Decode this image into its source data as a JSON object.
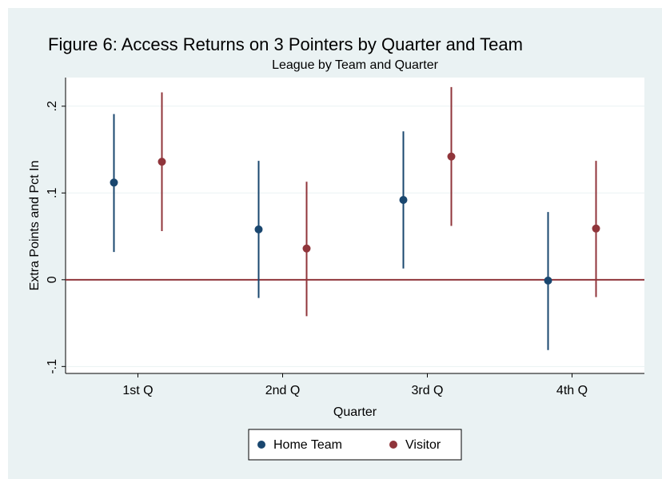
{
  "chart_data": {
    "type": "errorbar",
    "title": "Figure 6: Access Returns on 3 Pointers by Quarter and Team",
    "subtitle": "League by Team and Quarter",
    "x_label": "Quarter",
    "y_label": "Extra Points and Pct In",
    "categories": [
      "1st Q",
      "2nd Q",
      "3rd Q",
      "4th Q"
    ],
    "series": [
      {
        "name": "Home Team",
        "color": "#1a476f",
        "values": [
          0.112,
          0.058,
          0.092,
          -0.001
        ],
        "lower": [
          0.032,
          -0.021,
          0.013,
          -0.081
        ],
        "upper": [
          0.191,
          0.137,
          0.171,
          0.078
        ]
      },
      {
        "name": "Visitor",
        "color": "#90353b",
        "values": [
          0.136,
          0.036,
          0.142,
          0.059
        ],
        "lower": [
          0.056,
          -0.042,
          0.062,
          -0.02
        ],
        "upper": [
          0.216,
          0.113,
          0.222,
          0.137
        ]
      }
    ],
    "ylim": [
      -0.108,
      0.233
    ],
    "yticks": [
      {
        "value": -0.1,
        "label": "-.1"
      },
      0,
      {
        "value": 0.1,
        "label": ".1"
      },
      {
        "value": 0.2,
        "label": ".2"
      }
    ],
    "yline": {
      "value": 0,
      "color": "#90353b"
    },
    "grid": true,
    "legend": "bottom"
  }
}
